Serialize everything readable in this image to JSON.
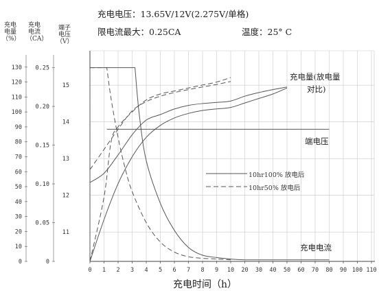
{
  "header": {
    "line1": "充电电压：13.65V/12V(2.275V/单格)",
    "line2_left": "限电流最大：0.25CA",
    "line2_right": "温度：25° C"
  },
  "chart_data": {
    "type": "line",
    "title": "充电电压：13.65V/12V(2.275V/单格)",
    "xlabel": "充电时间（h）",
    "x_ticks": [
      "0",
      "1",
      "2",
      "3",
      "4",
      "5",
      "6",
      "7",
      "8",
      "9",
      "10",
      "20",
      "30",
      "40",
      "50",
      "60",
      "70",
      "80",
      "90",
      "100",
      "110"
    ],
    "axes": [
      {
        "label": "充电电量（%）",
        "ticks": [
          "0",
          "10",
          "20",
          "30",
          "40",
          "50",
          "60",
          "70",
          "80",
          "90",
          "100",
          "110",
          "120",
          "130"
        ],
        "ylim": [
          0,
          140
        ]
      },
      {
        "label": "充电电流（CA）",
        "ticks": [
          "0",
          "0.05",
          "0.10",
          "0.15",
          "0.20",
          "0.25"
        ],
        "ylim": [
          0,
          0.27
        ]
      },
      {
        "label": "端子电压（V）",
        "ticks": [
          "11",
          "12",
          "13",
          "14",
          "15"
        ],
        "ylim": [
          10.2,
          15.9
        ]
      }
    ],
    "annotations": [
      {
        "text": "充电量(放电量",
        "text2": "对比)"
      },
      {
        "text": "端电压"
      },
      {
        "text": "充电电流"
      }
    ],
    "legend": {
      "placement": "center-right",
      "entries": [
        {
          "name": "10hr100% 放电后",
          "style": "solid"
        },
        {
          "name": "10hr50% 放电后",
          "style": "dashed"
        }
      ]
    },
    "series": [
      {
        "id": "charge-solid",
        "axis": 0,
        "style": "solid",
        "x": [
          0,
          1,
          2,
          3,
          4,
          5,
          6,
          7,
          8,
          9,
          10,
          20,
          30,
          40,
          50
        ],
        "y": [
          0,
          28,
          52,
          70,
          83,
          91,
          96,
          99,
          101,
          102,
          103,
          106,
          109,
          112,
          116
        ]
      },
      {
        "id": "charge-dashed",
        "axis": 0,
        "style": "dashed",
        "x": [
          0,
          1,
          1.5,
          2,
          3,
          4,
          5,
          6,
          7,
          8,
          9,
          10
        ],
        "y": [
          0,
          43,
          80,
          90,
          100,
          108,
          112,
          114,
          116,
          118,
          120,
          123
        ]
      },
      {
        "id": "voltage-solid",
        "axis": 2,
        "style": "solid",
        "x": [
          0,
          1,
          2,
          3,
          4,
          5,
          6,
          7,
          8,
          9,
          10,
          20,
          30,
          40,
          50
        ],
        "y": [
          12.35,
          12.6,
          13.1,
          13.65,
          14.05,
          14.2,
          14.35,
          14.45,
          14.5,
          14.53,
          14.57,
          14.7,
          14.8,
          14.88,
          14.95
        ]
      },
      {
        "id": "voltage-dashed",
        "axis": 2,
        "style": "dashed",
        "x": [
          0,
          1,
          2,
          3,
          4,
          5,
          6,
          7,
          8,
          9,
          10
        ],
        "y": [
          12.7,
          13.25,
          13.8,
          14.3,
          14.55,
          14.7,
          14.8,
          14.88,
          14.95,
          15.02,
          15.1
        ]
      },
      {
        "id": "current-solid",
        "axis": 1,
        "style": "solid",
        "x": [
          0,
          3.2,
          3.5,
          4,
          5,
          6,
          7,
          8,
          9,
          10,
          20,
          30,
          40,
          50,
          60,
          70,
          80
        ],
        "y": [
          0.25,
          0.25,
          0.19,
          0.13,
          0.075,
          0.04,
          0.018,
          0.008,
          0.005,
          0.003,
          0.002,
          0.002,
          0.002,
          0.002,
          0.002,
          0.002,
          0.002
        ]
      },
      {
        "id": "current-dashed",
        "axis": 1,
        "style": "dashed",
        "x": [
          0,
          1.2,
          1.5,
          2,
          2.5,
          3,
          4,
          5,
          6,
          7,
          8,
          9,
          10
        ],
        "y": [
          0.25,
          0.25,
          0.21,
          0.16,
          0.12,
          0.09,
          0.05,
          0.025,
          0.012,
          0.006,
          0.004,
          0.003,
          0.002
        ]
      }
    ]
  }
}
